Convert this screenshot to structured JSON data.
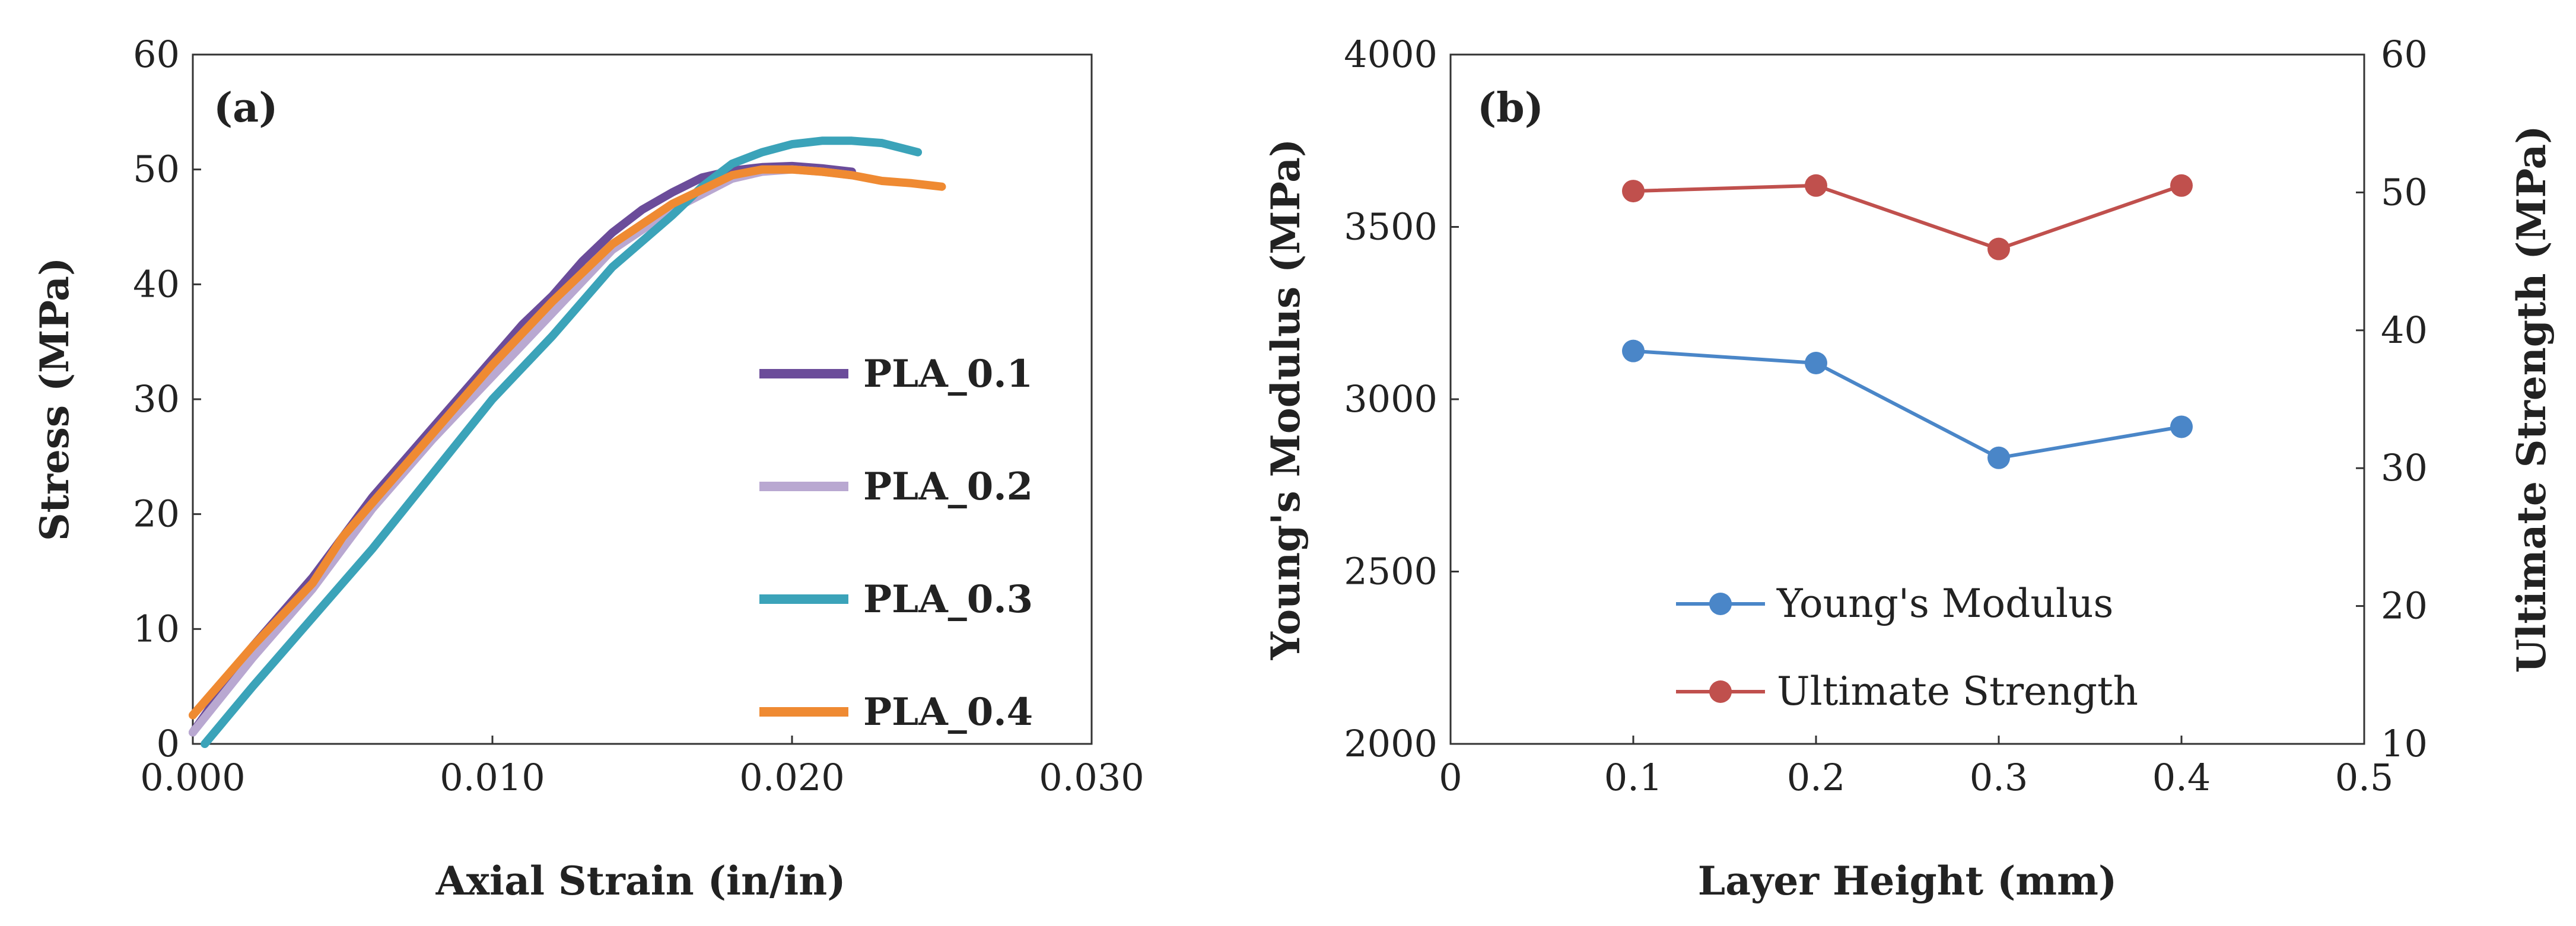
{
  "chart_data": [
    {
      "type": "line",
      "panel_label": "(a)",
      "title": "",
      "xlabel": "Axial Strain (in/in)",
      "ylabel": "Stress (MPa)",
      "xlim": [
        0,
        0.03
      ],
      "ylim": [
        0,
        60
      ],
      "xticks": [
        0,
        0.01,
        0.02,
        0.03
      ],
      "xtick_labels": [
        "0.000",
        "0.010",
        "0.020",
        "0.030"
      ],
      "yticks": [
        0,
        10,
        20,
        30,
        40,
        50,
        60
      ],
      "ytick_labels": [
        "0",
        "10",
        "20",
        "30",
        "40",
        "50",
        "60"
      ],
      "grid": false,
      "legend_position": "right",
      "series": [
        {
          "name": "PLA_0.1",
          "color": "#6b4c9a",
          "x": [
            0.0,
            0.002,
            0.004,
            0.006,
            0.008,
            0.01,
            0.011,
            0.012,
            0.013,
            0.014,
            0.015,
            0.016,
            0.017,
            0.018,
            0.019,
            0.02,
            0.021,
            0.022
          ],
          "y": [
            1.0,
            8.5,
            14.5,
            21.5,
            27.5,
            33.5,
            36.5,
            39.0,
            42.0,
            44.5,
            46.5,
            48.0,
            49.3,
            49.9,
            50.2,
            50.3,
            50.1,
            49.8
          ]
        },
        {
          "name": "PLA_0.2",
          "color": "#b9a8d1",
          "x": [
            0.0,
            0.002,
            0.004,
            0.006,
            0.008,
            0.01,
            0.012,
            0.014,
            0.016,
            0.018,
            0.019,
            0.02,
            0.021,
            0.022
          ],
          "y": [
            1.0,
            7.5,
            13.5,
            20.5,
            26.5,
            32.0,
            37.5,
            43.0,
            46.5,
            49.2,
            49.8,
            50.0,
            49.8,
            49.5
          ]
        },
        {
          "name": "PLA_0.3",
          "color": "#3ba3b9",
          "x": [
            0.0004,
            0.002,
            0.004,
            0.006,
            0.008,
            0.01,
            0.012,
            0.014,
            0.016,
            0.017,
            0.018,
            0.019,
            0.02,
            0.021,
            0.022,
            0.023,
            0.0242
          ],
          "y": [
            0.0,
            5.0,
            11.0,
            17.0,
            23.5,
            30.0,
            35.5,
            41.5,
            46.0,
            48.5,
            50.5,
            51.5,
            52.2,
            52.5,
            52.5,
            52.3,
            51.5
          ]
        },
        {
          "name": "PLA_0.4",
          "color": "#ef8a32",
          "x": [
            0.0,
            0.002,
            0.004,
            0.005,
            0.006,
            0.008,
            0.01,
            0.012,
            0.014,
            0.016,
            0.018,
            0.019,
            0.02,
            0.021,
            0.022,
            0.023,
            0.024,
            0.025
          ],
          "y": [
            2.5,
            8.5,
            14.0,
            18.0,
            21.0,
            27.0,
            33.0,
            38.5,
            43.5,
            47.0,
            49.5,
            50.0,
            50.0,
            49.8,
            49.5,
            49.0,
            48.8,
            48.5
          ]
        }
      ]
    },
    {
      "type": "line",
      "panel_label": "(b)",
      "title": "",
      "xlabel": "Layer Height (mm)",
      "ylabel": "Young's Modulus (MPa)",
      "ylabel_right": "Ultimate Strength (MPa)",
      "xlim": [
        0,
        0.5
      ],
      "ylim": [
        2000,
        4000
      ],
      "ylim_right": [
        10,
        60
      ],
      "xticks": [
        0,
        0.1,
        0.2,
        0.3,
        0.4,
        0.5
      ],
      "xtick_labels": [
        "0",
        "0.1",
        "0.2",
        "0.3",
        "0.4",
        "0.5"
      ],
      "yticks": [
        2000,
        2500,
        3000,
        3500,
        4000
      ],
      "ytick_labels": [
        "2000",
        "2500",
        "3000",
        "3500",
        "4000"
      ],
      "yticks_right": [
        10,
        20,
        30,
        40,
        50,
        60
      ],
      "ytick_labels_right": [
        "10",
        "20",
        "30",
        "40",
        "50",
        "60"
      ],
      "grid": false,
      "legend_position": "bottom-center",
      "series": [
        {
          "name": "Young's Modulus",
          "axis": "left",
          "color": "#4a86c8",
          "x": [
            0.1,
            0.2,
            0.3,
            0.4
          ],
          "y": [
            3140,
            3105,
            2830,
            2920
          ]
        },
        {
          "name": "Ultimate Strength",
          "axis": "right",
          "color": "#c0504d",
          "x": [
            0.1,
            0.2,
            0.3,
            0.4
          ],
          "y": [
            50.1,
            50.5,
            45.9,
            50.5
          ]
        }
      ]
    }
  ]
}
